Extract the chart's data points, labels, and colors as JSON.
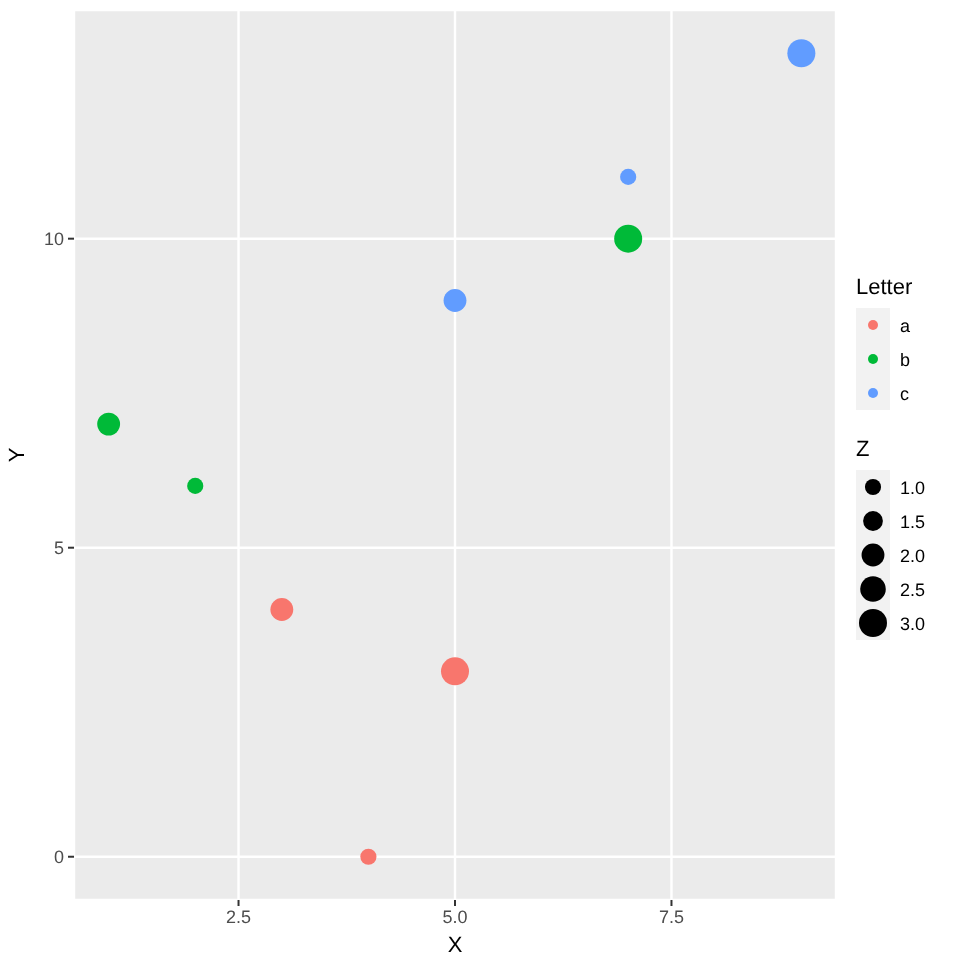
{
  "chart_data": {
    "type": "bubble",
    "xlabel": "X",
    "ylabel": "Y",
    "legend_title": "Letter",
    "annotations": [
      "Z"
    ],
    "series": [
      {
        "name": "a",
        "color": "#f8766d",
        "x": [
          3,
          5,
          4
        ],
        "values": [
          4,
          3,
          0
        ],
        "sizes": [
          2,
          3,
          1
        ]
      },
      {
        "name": "b",
        "color": "#00ba38",
        "x": [
          1,
          2,
          7
        ],
        "values": [
          7,
          6,
          10
        ],
        "sizes": [
          2,
          1,
          3
        ]
      },
      {
        "name": "c",
        "color": "#619cff",
        "x": [
          5,
          7,
          9
        ],
        "values": [
          9,
          11,
          13
        ],
        "sizes": [
          2,
          1,
          3
        ]
      }
    ],
    "size_legend": [
      {
        "value": 1,
        "label": "1.0"
      },
      {
        "value": 1.5,
        "label": "1.5"
      },
      {
        "value": 2,
        "label": "2.0"
      },
      {
        "value": 2.5,
        "label": "2.5"
      },
      {
        "value": 3,
        "label": "3.0"
      }
    ],
    "xlim": [
      0.6,
      9.4
    ],
    "ylim": [
      -0.7,
      13.7
    ],
    "xticks": [
      {
        "value": 2.5,
        "label": "2.5"
      },
      {
        "value": 5,
        "label": "5.0"
      },
      {
        "value": 7.5,
        "label": "7.5"
      }
    ],
    "yticks": [
      0,
      5,
      10
    ],
    "grid": true,
    "legend": "right",
    "marker": "circle"
  }
}
